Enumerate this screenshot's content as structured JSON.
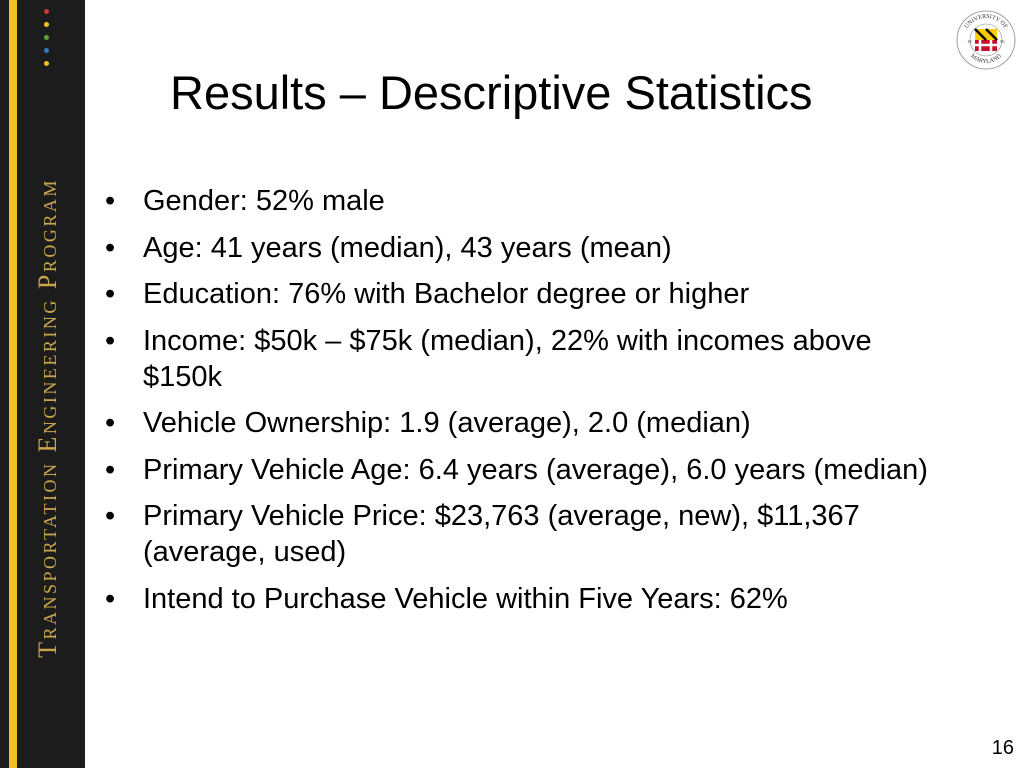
{
  "sidebar": {
    "program_name": "Transportation Engineering Program",
    "dot_colors": [
      "#d1352b",
      "#f0c21e",
      "#5aa33a",
      "#2f78c0",
      "#f0c21e"
    ]
  },
  "logo": {
    "text_top": "UNIVERSITY OF",
    "text_bottom": "MARYLAND",
    "year_left": "18",
    "year_right": "56",
    "colors": {
      "red": "#c8102e",
      "gold": "#ffcc00",
      "black": "#000000"
    }
  },
  "slide": {
    "title": "Results – Descriptive Statistics",
    "bullets": [
      "Gender: 52% male",
      "Age: 41 years (median), 43 years (mean)",
      "Education: 76% with Bachelor degree or higher",
      "Income: $50k – $75k (median), 22% with incomes above $150k",
      "Vehicle Ownership: 1.9 (average), 2.0 (median)",
      "Primary Vehicle Age: 6.4 years (average), 6.0 years (median)",
      "Primary Vehicle Price: $23,763 (average, new), $11,367 (average, used)",
      "Intend to Purchase Vehicle within Five Years: 62%"
    ],
    "bullet_marker": "•",
    "page_number": "16"
  }
}
